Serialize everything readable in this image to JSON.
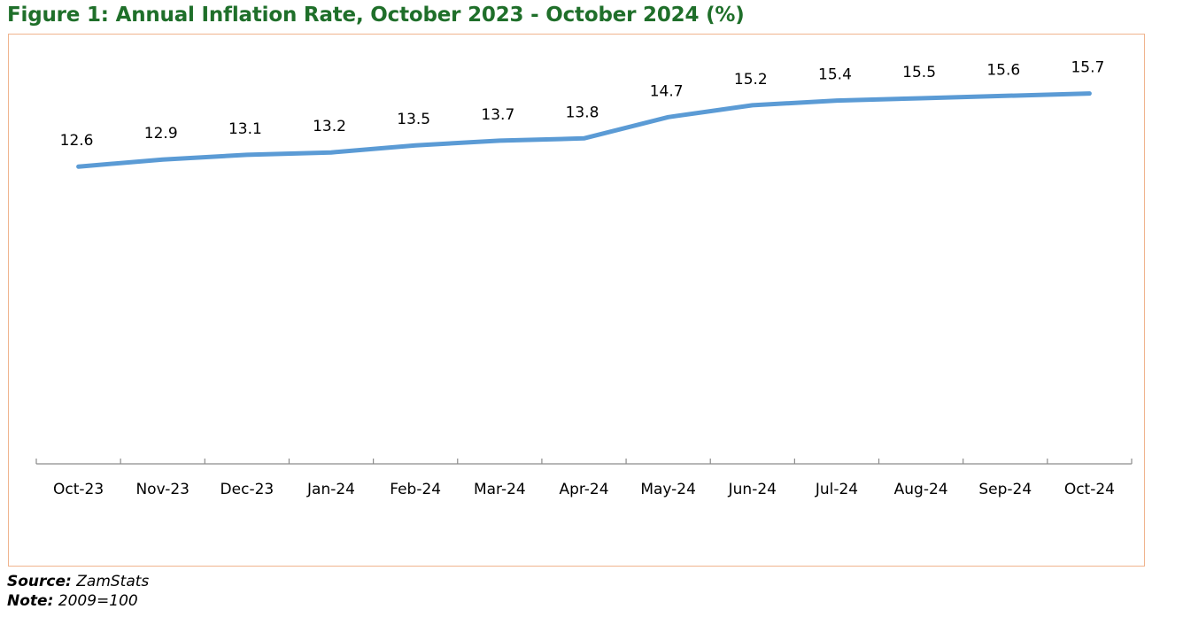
{
  "figure": {
    "title": "Figure 1: Annual Inflation Rate, October 2023 - October 2024 (%)"
  },
  "footnotes": {
    "source_label": "Source",
    "source_value": "ZamStats",
    "note_label": "Note",
    "note_value": "2009=100"
  },
  "colors": {
    "title": "#1f6f2a",
    "line": "#5b9bd5",
    "frame_border": "#f0b48e",
    "axis": "#8c8c8c"
  },
  "chart_data": {
    "type": "line",
    "title": "Figure 1: Annual Inflation Rate, October 2023 - October 2024 (%)",
    "xlabel": "",
    "ylabel": "",
    "categories": [
      "Oct-23",
      "Nov-23",
      "Dec-23",
      "Jan-24",
      "Feb-24",
      "Mar-24",
      "Apr-24",
      "May-24",
      "Jun-24",
      "Jul-24",
      "Aug-24",
      "Sep-24",
      "Oct-24"
    ],
    "series": [
      {
        "values": [
          12.6,
          12.9,
          13.1,
          13.2,
          13.5,
          13.7,
          13.8,
          14.7,
          15.2,
          15.4,
          15.5,
          15.6,
          15.7
        ],
        "color": "#5b9bd5"
      }
    ],
    "data_labels": [
      "12.6",
      "12.9",
      "13.1",
      "13.2",
      "13.5",
      "13.7",
      "13.8",
      "14.7",
      "15.2",
      "15.4",
      "15.5",
      "15.6",
      "15.7"
    ],
    "ylim": [
      0,
      18.2
    ],
    "y_axis_visible": false,
    "grid": false,
    "legend": "none"
  }
}
